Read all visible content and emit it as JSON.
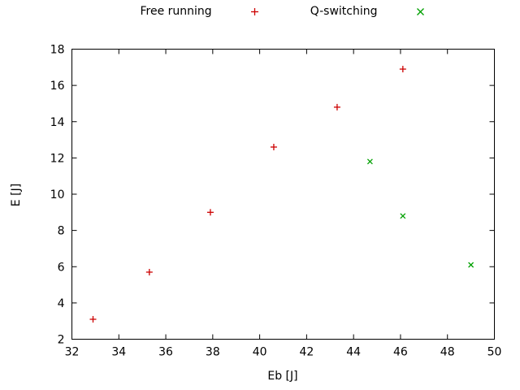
{
  "chart_data": {
    "type": "scatter",
    "title": "",
    "xlabel": "Eb [J]",
    "ylabel": "E [J]",
    "xlim": [
      32,
      50
    ],
    "ylim": [
      2,
      18
    ],
    "x_ticks": [
      32,
      34,
      36,
      38,
      40,
      42,
      44,
      46,
      48,
      50
    ],
    "y_ticks": [
      2,
      4,
      6,
      8,
      10,
      12,
      14,
      16,
      18
    ],
    "grid": false,
    "legend_position": "top-center-outside",
    "series": [
      {
        "name": "Free running",
        "marker": "plus",
        "color": "#cc0000",
        "points": [
          [
            32.9,
            3.1
          ],
          [
            35.3,
            5.7
          ],
          [
            37.9,
            9.0
          ],
          [
            40.6,
            12.6
          ],
          [
            43.3,
            14.8
          ],
          [
            46.1,
            16.9
          ]
        ]
      },
      {
        "name": "Q-switching",
        "marker": "cross",
        "color": "#00a000",
        "points": [
          [
            44.7,
            11.8
          ],
          [
            46.1,
            8.8
          ],
          [
            49.0,
            6.1
          ]
        ]
      }
    ]
  }
}
